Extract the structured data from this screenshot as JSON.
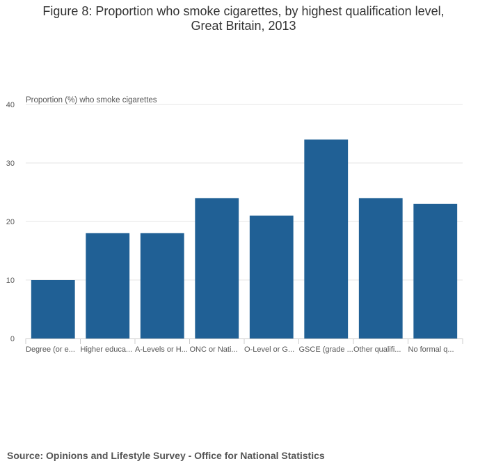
{
  "title_line1": "Figure 8: Proportion who smoke cigarettes, by highest qualification level,",
  "title_line2": "Great Britain, 2013",
  "source": "Source: Opinions and Lifestyle Survey - Office for National Statistics",
  "chart_data": {
    "type": "bar",
    "title": "Figure 8: Proportion who smoke cigarettes, by highest qualification level, Great Britain, 2013",
    "xlabel": "",
    "ylabel": "Proportion (%) who smoke cigarettes",
    "categories": [
      "Degree (or e...",
      "Higher educa...",
      "A-Levels or H...",
      "ONC or Nati...",
      "O-Level or G...",
      "GSCE (grade ...",
      "Other qualifi...",
      "No formal q..."
    ],
    "values": [
      10,
      18,
      18,
      24,
      21,
      34,
      24,
      23
    ],
    "ylim": [
      0,
      40
    ],
    "yticks": [
      0,
      10,
      20,
      30,
      40
    ],
    "grid": true,
    "legend": "none",
    "bar_color": "#206095"
  }
}
